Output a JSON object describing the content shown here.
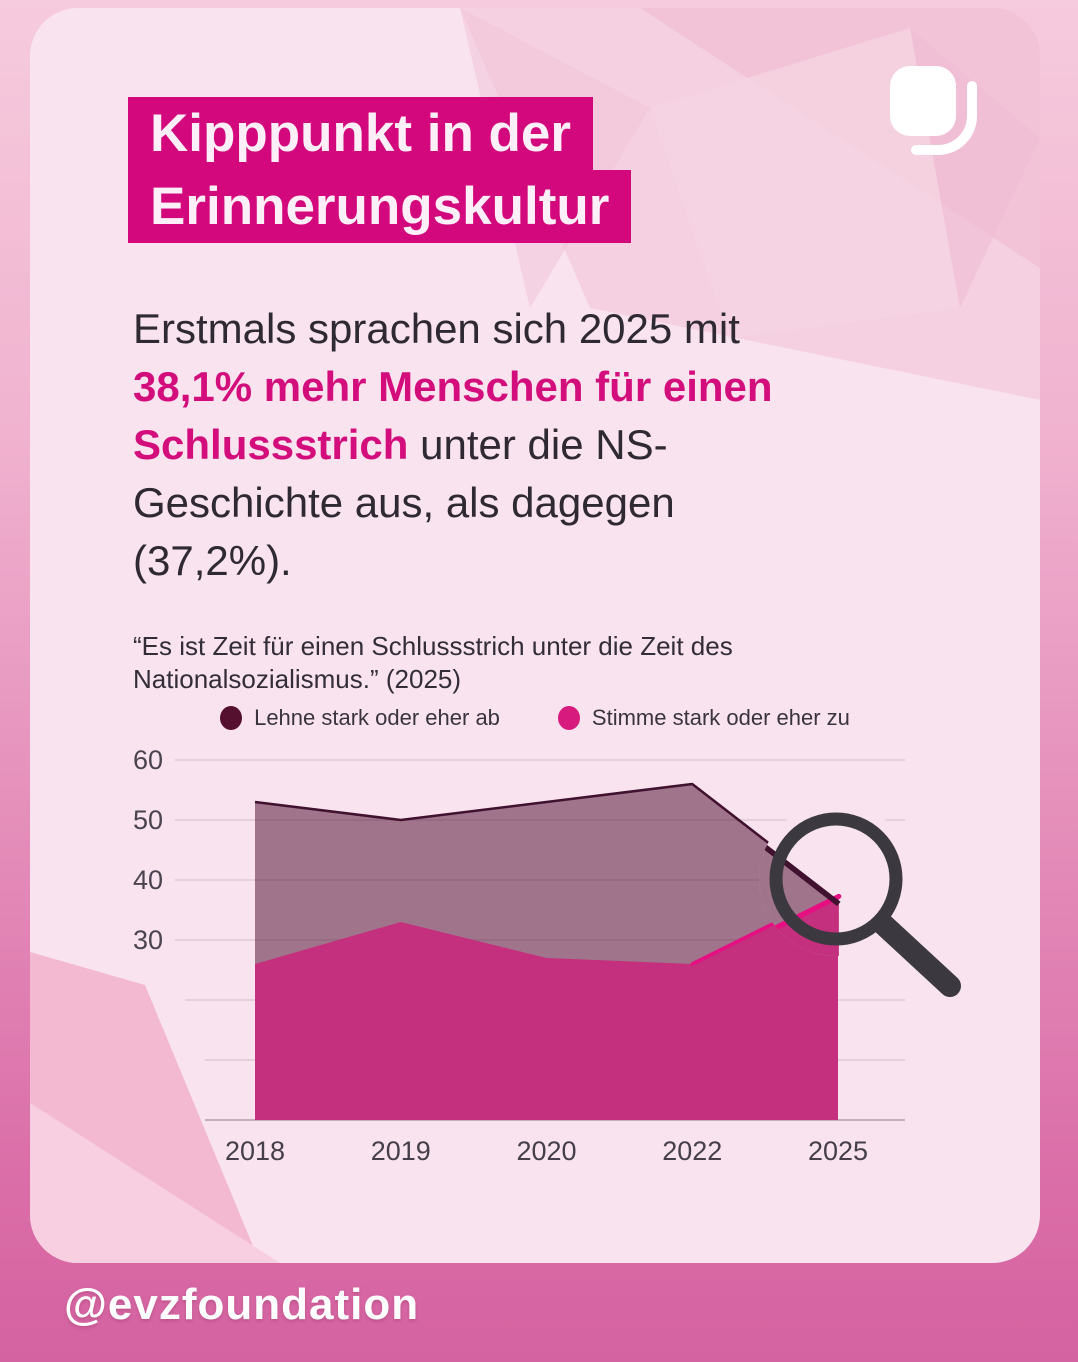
{
  "page": {
    "handle": "@evzfoundation"
  },
  "card": {
    "title_lines": [
      "Kipppunkt in der",
      "Erinnerungskultur"
    ],
    "intro_lines": [
      [
        {
          "t": "Erstmals sprachen sich 2025 mit",
          "h": false
        }
      ],
      [
        {
          "t": "38,1% mehr Menschen für einen",
          "h": true
        }
      ],
      [
        {
          "t": "Schlussstrich",
          "h": true
        },
        {
          "t": " unter die NS-",
          "h": false
        }
      ],
      [
        {
          "t": "Geschichte aus, als dagegen",
          "h": false
        }
      ],
      [
        {
          "t": "(37,2%).",
          "h": false
        }
      ]
    ],
    "quote_lines": [
      "“Es ist Zeit für einen Schlussstrich unter die Zeit des",
      "Nationalsozialismus.” (2025)"
    ]
  },
  "chart_data": {
    "type": "area",
    "title": "“Es ist Zeit für einen Schlussstrich unter die Zeit des Nationalsozialismus.” (2025)",
    "categories": [
      "2018",
      "2019",
      "2020",
      "2022",
      "2025"
    ],
    "series": [
      {
        "name": "Lehne stark oder eher ab",
        "values": [
          53,
          50,
          53,
          56,
          37.2
        ],
        "dot_color": "#551030",
        "fill": "rgba(88,26,56,0.55)",
        "stroke": "#40122f"
      },
      {
        "name": "Stimme stark oder eher zu",
        "values": [
          26,
          33,
          27,
          26,
          38.1
        ],
        "dot_color": "#d61a7e",
        "fill": "#c5307e",
        "stroke": "#e60e81"
      }
    ],
    "xlabel": "",
    "ylabel": "",
    "ylim": [
      0,
      60
    ],
    "yticks_labeled": [
      60,
      50,
      40,
      30
    ],
    "grid": true,
    "legend_position": "top",
    "annotations": [
      "magnifier highlights 2025 crossing: 38,1% zu vs 37,2% ab"
    ]
  },
  "colors": {
    "accent": "#d3087c",
    "highlight_text": "#d30d7c",
    "tick_text": "#4a4450",
    "gridline": "#ddc9d5",
    "baseline": "#c3aebb",
    "magnifier": "#3b393f",
    "plot_bg": "#f8e3ee"
  }
}
